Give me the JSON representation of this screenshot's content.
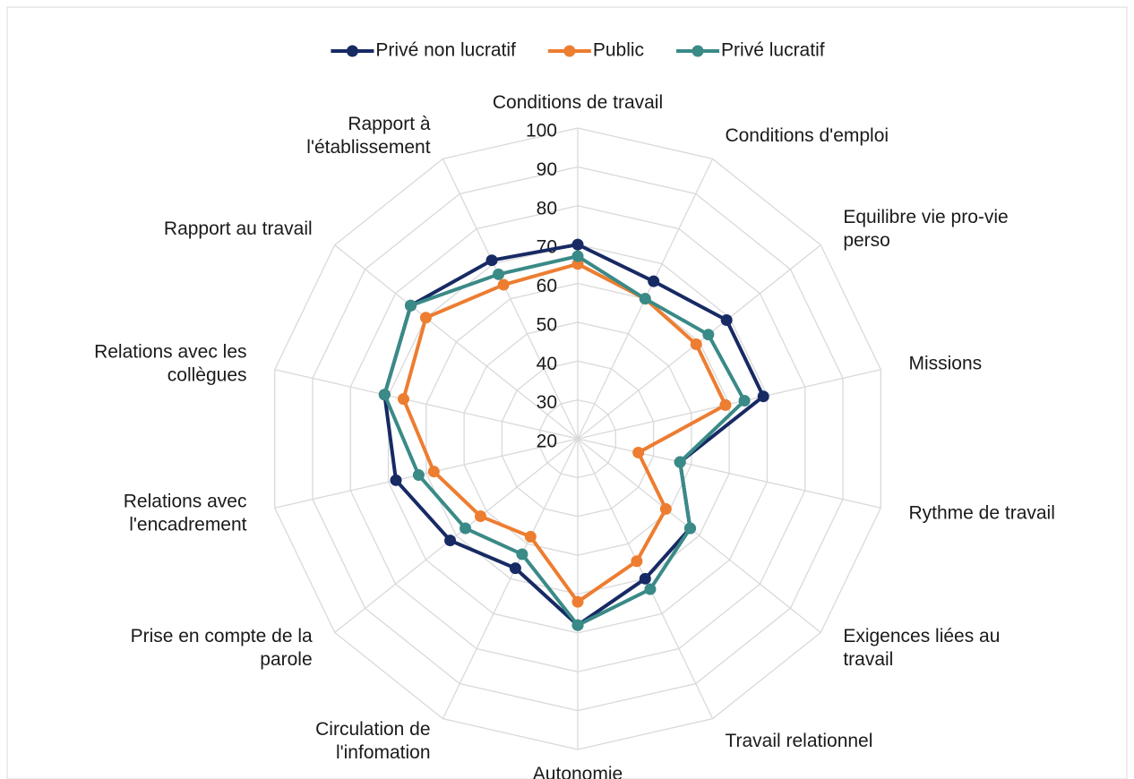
{
  "chart_data": {
    "type": "radar",
    "categories": [
      "Conditions de travail",
      "Conditions d'emploi",
      "Equilibre vie pro-vie perso",
      "Missions",
      "Rythme de travail",
      "Exigences liées au travail",
      "Travail relationnel",
      "Autonomie",
      "Circulation de l'infomation",
      "Prise en compte de la parole",
      "Relations avec l'encadrement",
      "Relations avec les collègues",
      "Rapport au travail",
      "Rapport à l'établissement"
    ],
    "series": [
      {
        "name": "Privé non lucratif",
        "color": "#172a64",
        "values": [
          70,
          65,
          69,
          69,
          47,
          57,
          60,
          68,
          57,
          62,
          68,
          71,
          75,
          71
        ]
      },
      {
        "name": "Public",
        "color": "#ed7d31",
        "values": [
          65,
          60,
          59,
          59,
          36,
          49,
          55,
          62,
          48,
          52,
          58,
          66,
          70,
          64
        ]
      },
      {
        "name": "Privé lucratif",
        "color": "#3a8a87",
        "values": [
          67,
          60,
          63,
          64,
          47,
          57,
          63,
          68,
          53,
          57,
          62,
          71,
          75,
          67
        ]
      }
    ],
    "ylim": [
      20,
      100
    ],
    "yticks": [
      20,
      30,
      40,
      50,
      60,
      70,
      80,
      90,
      100
    ],
    "grid": true,
    "legend": "top"
  }
}
